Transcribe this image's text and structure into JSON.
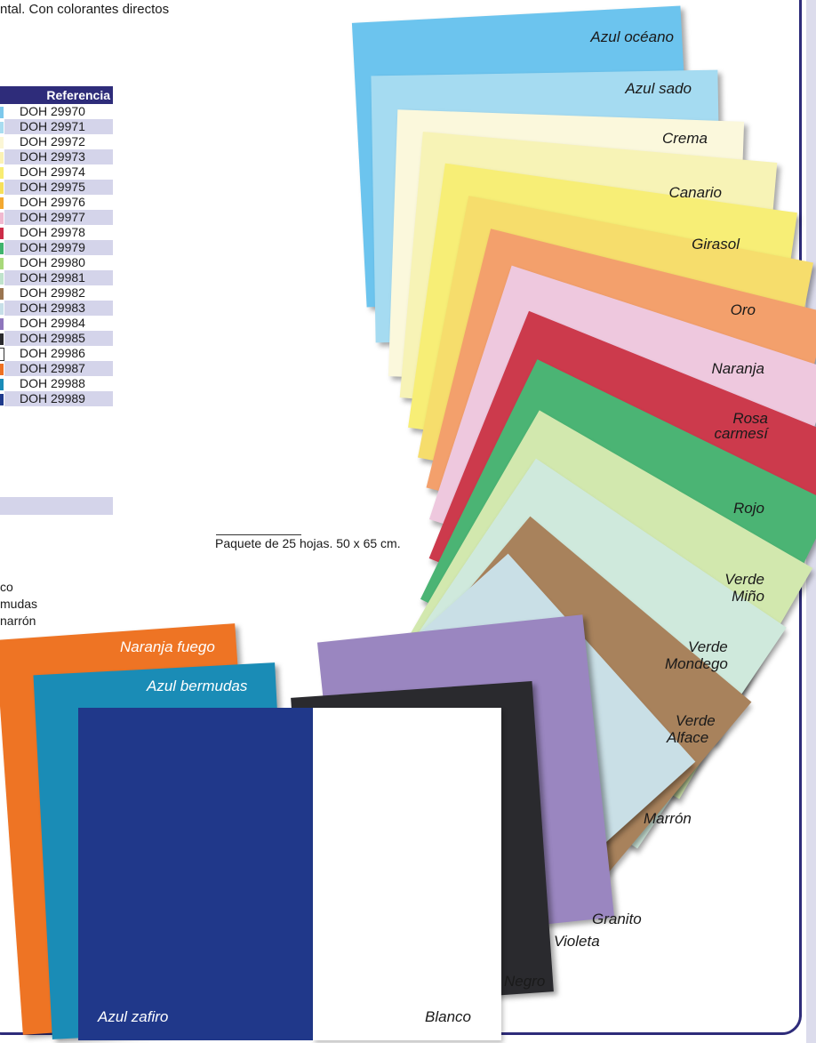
{
  "intro_text": "ntal. Con colorantes directos",
  "table": {
    "header": "Referencia",
    "rows": [
      {
        "code": "DOH 29970",
        "color": "#7cc8ec"
      },
      {
        "code": "DOH 29971",
        "color": "#a8dcf0"
      },
      {
        "code": "DOH 29972",
        "color": "#fbf6d6"
      },
      {
        "code": "DOH 29973",
        "color": "#fbf2b4"
      },
      {
        "code": "DOH 29974",
        "color": "#f8ec72"
      },
      {
        "code": "DOH 29975",
        "color": "#f6e05a"
      },
      {
        "code": "DOH 29976",
        "color": "#f3a830"
      },
      {
        "code": "DOH 29977",
        "color": "#f0b9d0"
      },
      {
        "code": "DOH 29978",
        "color": "#cc2c48"
      },
      {
        "code": "DOH 29979",
        "color": "#3fb36d"
      },
      {
        "code": "DOH 29980",
        "color": "#a8d87a"
      },
      {
        "code": "DOH 29981",
        "color": "#bfe3cc"
      },
      {
        "code": "DOH 29982",
        "color": "#9a7550"
      },
      {
        "code": "DOH 29983",
        "color": "#c6dfe8"
      },
      {
        "code": "DOH 29984",
        "color": "#8e76bc"
      },
      {
        "code": "DOH 29985",
        "color": "#2a2a2e"
      },
      {
        "code": "DOH 29986",
        "color": "#ffffff"
      },
      {
        "code": "DOH 29987",
        "color": "#ee7022"
      },
      {
        "code": "DOH 29988",
        "color": "#1a8cb8"
      },
      {
        "code": "DOH 29989",
        "color": "#1e3a8c"
      }
    ]
  },
  "pack_note": "Paquete de 25 hojas. 50 x 65 cm.",
  "partial_labels": [
    "co",
    "mudas",
    "narrón"
  ],
  "fan_labels": {
    "azul_oceano": "Azul océano",
    "azul_sado": "Azul sado",
    "crema": "Crema",
    "canario": "Canario",
    "girasol": "Girasol",
    "oro": "Oro",
    "naranja": "Naranja",
    "rosa_carmesi": [
      "Rosa",
      "carmesí"
    ],
    "rojo": "Rojo",
    "verde_minho": [
      "Verde",
      "Miño"
    ],
    "verde_mondego": [
      "Verde",
      "Mondego"
    ],
    "verde_alface": [
      "Verde",
      "Alface"
    ],
    "marron": "Marrón",
    "granito": "Granito",
    "violeta": "Violeta",
    "negro": "Negro"
  },
  "front_labels": {
    "naranja_fuego": "Naranja fuego",
    "azul_bermudas": "Azul bermudas",
    "azul_zafiro": "Azul zafiro",
    "blanco": "Blanco"
  },
  "colors": {
    "navy": "#2e2c7a",
    "azul_oceano": "#6cc4ee",
    "azul_sado": "#a5dbf1",
    "crema": "#fbf8dc",
    "canario": "#f7f3b6",
    "girasol": "#f7ee76",
    "oro": "#f6dd6c",
    "naranja": "#f3a06c",
    "rosa_carmesi": "#eec8de",
    "rojo": "#cc3a4c",
    "verde_minho": "#4bb474",
    "verde_mondego": "#d2e8ae",
    "verde_alface": "#cfe9dc",
    "marron": "#a8825c",
    "granito": "#c9dfe6",
    "violeta": "#9a86c0",
    "negro": "#2a2a2e",
    "naranja_fuego": "#ee7424",
    "azul_bermudas": "#1a8cb6",
    "azul_zafiro": "#20388a",
    "blanco": "#ffffff"
  }
}
